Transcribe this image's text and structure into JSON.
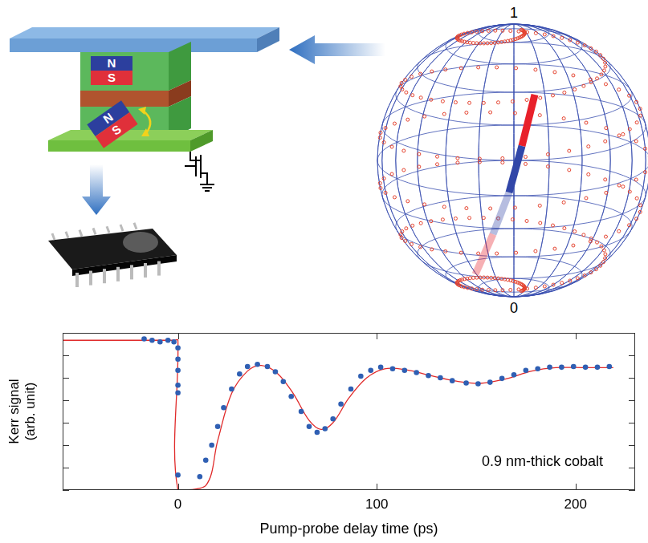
{
  "device": {
    "magnets": [
      {
        "north": "N",
        "south": "S"
      },
      {
        "north": "N",
        "south": "S"
      }
    ]
  },
  "bloch_sphere": {
    "top_label": "1",
    "bottom_label": "0"
  },
  "chart_data": {
    "type": "scatter",
    "x_label": "Pump-probe delay time (ps)",
    "y_label": "Kerr signal (arb. unit)",
    "annotations": [
      "0.9 nm-thick cobalt"
    ],
    "xlim": [
      -58,
      230
    ],
    "xticks": [
      0,
      100,
      200
    ],
    "ylim": [
      0,
      7
    ],
    "yticks": [
      0,
      1,
      2,
      3,
      4,
      5,
      6,
      7
    ],
    "tick_labels": "x",
    "grid": false,
    "series": [
      {
        "type": "scatter",
        "color": "#2f5fb3",
        "marker": "circle",
        "x": [
          -17,
          -13,
          -9,
          -5,
          -2,
          0,
          0,
          0,
          0,
          0,
          0,
          11,
          14,
          17,
          20,
          23,
          27,
          31,
          35,
          40,
          45,
          49,
          53,
          57,
          62,
          66,
          70,
          74,
          78,
          82,
          87,
          92,
          97,
          102,
          108,
          114,
          120,
          126,
          132,
          138,
          145,
          151,
          157,
          163,
          169,
          175,
          181,
          187,
          193,
          199,
          205,
          211,
          217
        ],
        "values": [
          6.73,
          6.67,
          6.6,
          6.67,
          6.6,
          6.33,
          5.83,
          5.33,
          4.67,
          4.33,
          0.67,
          0.6,
          1.33,
          2.0,
          2.83,
          3.67,
          4.5,
          5.17,
          5.5,
          5.6,
          5.5,
          5.27,
          4.83,
          4.17,
          3.5,
          2.83,
          2.57,
          2.73,
          3.17,
          3.83,
          4.5,
          5.07,
          5.33,
          5.47,
          5.4,
          5.33,
          5.23,
          5.1,
          5.0,
          4.87,
          4.77,
          4.73,
          4.8,
          4.97,
          5.13,
          5.33,
          5.4,
          5.47,
          5.47,
          5.5,
          5.47,
          5.47,
          5.5
        ]
      },
      {
        "type": "line",
        "color": "#e02a2a",
        "line_style": "solid",
        "x": [
          -58,
          -2,
          0,
          0,
          14,
          20,
          27,
          35,
          42,
          50,
          58,
          66,
          72,
          78,
          86,
          95,
          104,
          115,
          127,
          140,
          152,
          165,
          178,
          190,
          205,
          219
        ],
        "values": [
          6.67,
          6.67,
          6.67,
          0,
          0.2,
          2.2,
          4.3,
          5.3,
          5.55,
          5.2,
          4.3,
          3.1,
          2.7,
          3.0,
          4.1,
          5.0,
          5.4,
          5.35,
          5.1,
          4.85,
          4.75,
          4.95,
          5.3,
          5.45,
          5.45,
          5.45
        ]
      }
    ]
  }
}
